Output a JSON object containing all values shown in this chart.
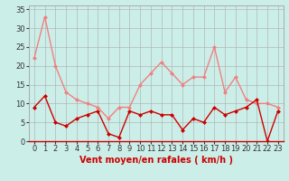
{
  "x": [
    0,
    1,
    2,
    3,
    4,
    5,
    6,
    7,
    8,
    9,
    10,
    11,
    12,
    13,
    14,
    15,
    16,
    17,
    18,
    19,
    20,
    21,
    22,
    23
  ],
  "rafales": [
    22,
    33,
    20,
    13,
    11,
    10,
    9,
    6,
    9,
    9,
    15,
    18,
    21,
    18,
    15,
    17,
    17,
    25,
    13,
    17,
    11,
    10,
    10,
    9
  ],
  "moyen": [
    9,
    12,
    5,
    4,
    6,
    7,
    8,
    2,
    1,
    8,
    7,
    8,
    7,
    7,
    3,
    6,
    5,
    9,
    7,
    8,
    9,
    11,
    0,
    8
  ],
  "color_rafales": "#f08080",
  "color_moyen": "#cc0000",
  "bg_color": "#cceee8",
  "grid_color": "#aaaaaa",
  "xlabel": "Vent moyen/en rafales ( km/h )",
  "xlabel_color": "#cc0000",
  "xlabel_fontsize": 7,
  "yticks": [
    0,
    5,
    10,
    15,
    20,
    25,
    30,
    35
  ],
  "ylim": [
    0,
    36
  ],
  "xlim": [
    -0.5,
    23.5
  ],
  "tick_fontsize": 6,
  "linewidth": 1.0,
  "markersize": 2.5
}
